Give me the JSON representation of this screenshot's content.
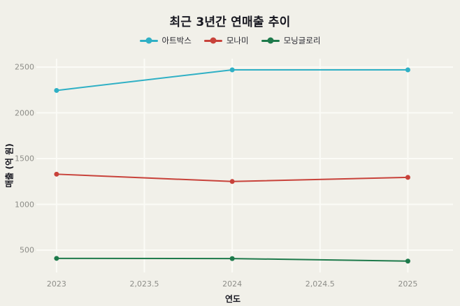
{
  "title": "최근 3년간 연매출 추이",
  "legend": [
    {
      "label": "아트박스",
      "color": "#2fb0c5"
    },
    {
      "label": "모나미",
      "color": "#c8423a"
    },
    {
      "label": "모닝글로리",
      "color": "#1e7a4b"
    }
  ],
  "chart_data": {
    "type": "line",
    "title": "최근 3년간 연매출 추이",
    "xlabel": "연도",
    "ylabel": "매출 (억 원)",
    "x": [
      2023,
      2024,
      2025
    ],
    "series": [
      {
        "name": "아트박스",
        "color": "#2fb0c5",
        "values": [
          2245,
          2470,
          2470
        ]
      },
      {
        "name": "모나미",
        "color": "#c8423a",
        "values": [
          1330,
          1250,
          1295
        ]
      },
      {
        "name": "모닝글로리",
        "color": "#1e7a4b",
        "values": [
          410,
          408,
          380
        ]
      }
    ],
    "x_ticks": {
      "values": [
        2023,
        2023.5,
        2024,
        2024.5,
        2025
      ],
      "labels": [
        "2023",
        "2,023.5",
        "2024",
        "2,024.5",
        "2025"
      ]
    },
    "y_ticks": {
      "values": [
        500,
        1000,
        1500,
        2000,
        2500
      ],
      "labels": [
        "500",
        "1000",
        "1500",
        "2000",
        "2500"
      ]
    },
    "xlim": [
      2022.885,
      2025.257
    ],
    "ylim": [
      256,
      2592
    ],
    "grid": true,
    "legend_position": "top"
  },
  "colors": {
    "background": "#f1f0e9",
    "gridline": "#fbfbf6",
    "tick_text": "#8d8d88",
    "heading_text": "#16161f"
  }
}
